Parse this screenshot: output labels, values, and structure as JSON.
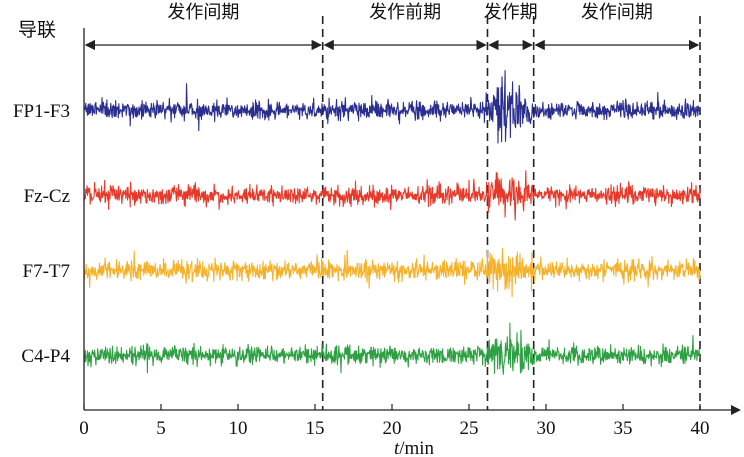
{
  "chart_data": {
    "type": "line",
    "title": "",
    "xlabel": "t/min",
    "xlabel_italic_part": "t",
    "xlabel_rest": "/min",
    "ylabel": "导联",
    "xlim": [
      0,
      40
    ],
    "xticks": [
      0,
      5,
      10,
      15,
      20,
      25,
      30,
      35,
      40
    ],
    "xtick_labels": [
      "0",
      "5",
      "10",
      "15",
      "20",
      "25",
      "30",
      "35",
      "40"
    ],
    "phase_boundaries": [
      15.5,
      26.2,
      29.2,
      40
    ],
    "phases": [
      {
        "label": "发作间期",
        "start": 0,
        "end": 15.5
      },
      {
        "label": "发作前期",
        "start": 15.5,
        "end": 26.2
      },
      {
        "label": "发作期",
        "start": 26.2,
        "end": 29.2
      },
      {
        "label": "发作间期",
        "start": 29.2,
        "end": 40
      }
    ],
    "series": [
      {
        "name": "FP1-F3",
        "color": "#2a2f8f",
        "baseline_amp": 1.0,
        "preictal_amp": 1.05,
        "ictal_amp": 3.6
      },
      {
        "name": "Fz-Cz",
        "color": "#e8382a",
        "baseline_amp": 1.05,
        "preictal_amp": 1.1,
        "ictal_amp": 2.2
      },
      {
        "name": "F7-T7",
        "color": "#f5b12a",
        "baseline_amp": 1.15,
        "preictal_amp": 1.15,
        "ictal_amp": 2.6
      },
      {
        "name": "C4-P4",
        "color": "#2ea043",
        "baseline_amp": 1.0,
        "preictal_amp": 1.05,
        "ictal_amp": 2.6
      }
    ]
  }
}
